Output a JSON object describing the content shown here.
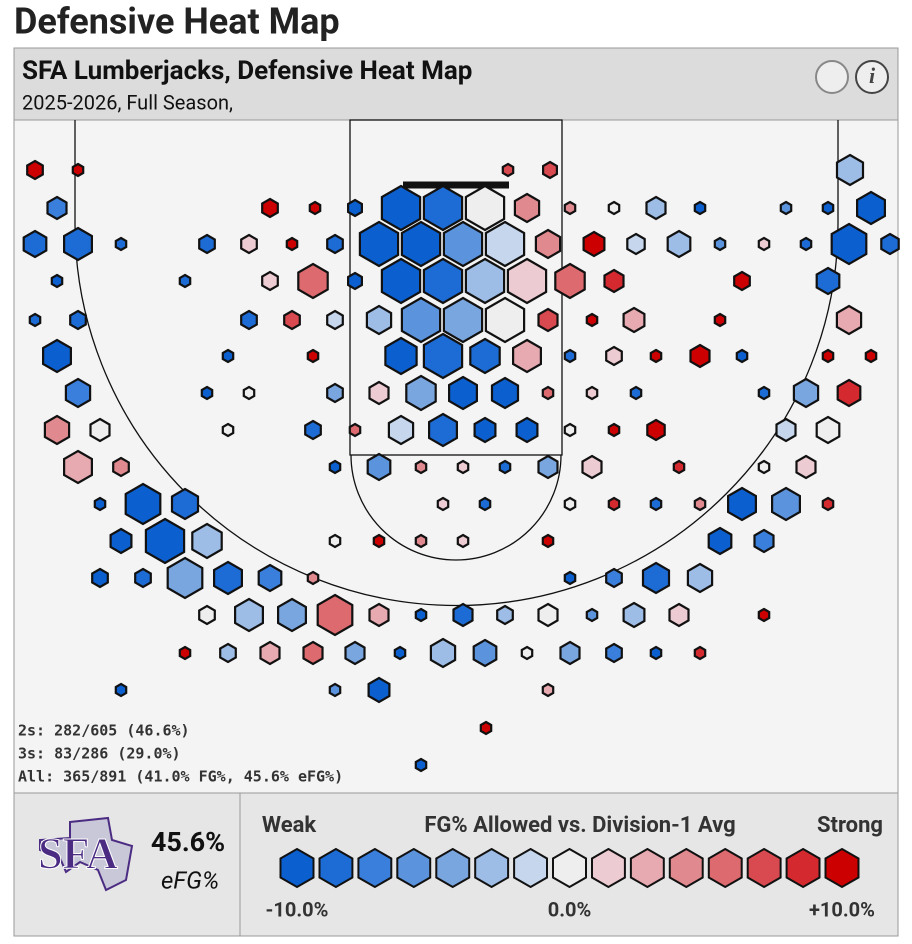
{
  "page_title": "Defensive Heat Map",
  "header": {
    "title": "SFA Lumberjacks, Defensive Heat Map",
    "subtitle": "2025-2026, Full Season,",
    "info_icon": "i"
  },
  "stats": [
    "2s: 282/605 (46.6%)",
    "3s: 83/286 (29.0%)",
    "All: 365/891 (41.0% FG%, 45.6% eFG%)"
  ],
  "team": {
    "logo": "SFA",
    "efg_value": "45.6%",
    "efg_label": "eFG%"
  },
  "legend": {
    "title": "FG% Allowed vs. Division-1 Avg",
    "low_label": "Weak",
    "high_label": "Strong",
    "ticks": [
      {
        "value": -10,
        "label": "-10.0%"
      },
      {
        "value": 0,
        "label": "0.0%"
      },
      {
        "value": 10,
        "label": "+10.0%"
      }
    ],
    "colors": [
      "#0b5fcf",
      "#1d6cd6",
      "#3a7fdb",
      "#5b93dd",
      "#7aa6e0",
      "#9dbde6",
      "#c6d6ec",
      "#eeeeee",
      "#ecccd2",
      "#e6aab0",
      "#e08a8f",
      "#dc6a6f",
      "#d84a4f",
      "#d42a2f",
      "#cc0000"
    ]
  }
}
